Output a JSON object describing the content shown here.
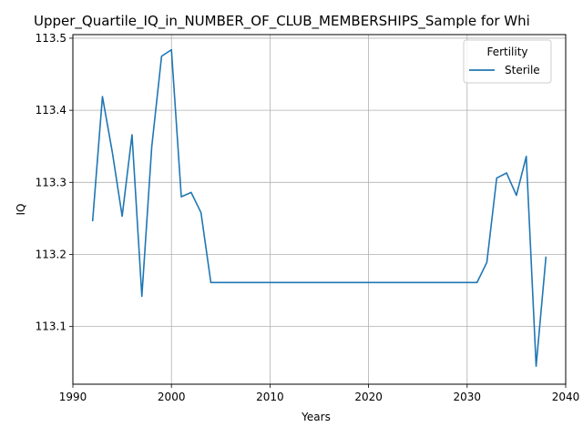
{
  "chart_data": {
    "type": "line",
    "title": "Upper_Quartile_IQ_in_NUMBER_OF_CLUB_MEMBERSHIPS_Sample for Whi",
    "xlabel": "Years",
    "ylabel": "IQ",
    "xlim": [
      1990,
      2040
    ],
    "ylim": [
      113.02,
      113.505
    ],
    "xticks": [
      1990,
      2000,
      2010,
      2020,
      2030,
      2040
    ],
    "yticks": [
      113.1,
      113.2,
      113.3,
      113.4,
      113.5
    ],
    "grid": true,
    "legend": {
      "title": "Fertility",
      "position": "top-right"
    },
    "series": [
      {
        "name": "Sterile",
        "color": "#1f77b4",
        "x": [
          1992,
          1993,
          1994,
          1995,
          1996,
          1997,
          1998,
          1999,
          2000,
          2001,
          2002,
          2003,
          2004,
          2005,
          2006,
          2007,
          2008,
          2009,
          2010,
          2011,
          2012,
          2013,
          2014,
          2015,
          2016,
          2017,
          2018,
          2019,
          2020,
          2021,
          2022,
          2023,
          2024,
          2025,
          2026,
          2027,
          2028,
          2029,
          2030,
          2031,
          2032,
          2033,
          2034,
          2035,
          2036,
          2037,
          2038
        ],
        "y": [
          113.246,
          113.419,
          113.342,
          113.253,
          113.366,
          113.142,
          113.349,
          113.475,
          113.484,
          113.28,
          113.286,
          113.258,
          113.161,
          113.161,
          113.161,
          113.161,
          113.161,
          113.161,
          113.161,
          113.161,
          113.161,
          113.161,
          113.161,
          113.161,
          113.161,
          113.161,
          113.161,
          113.161,
          113.161,
          113.161,
          113.161,
          113.161,
          113.161,
          113.161,
          113.161,
          113.161,
          113.161,
          113.161,
          113.161,
          113.161,
          113.189,
          113.306,
          113.313,
          113.282,
          113.336,
          113.045,
          113.197
        ]
      }
    ]
  }
}
